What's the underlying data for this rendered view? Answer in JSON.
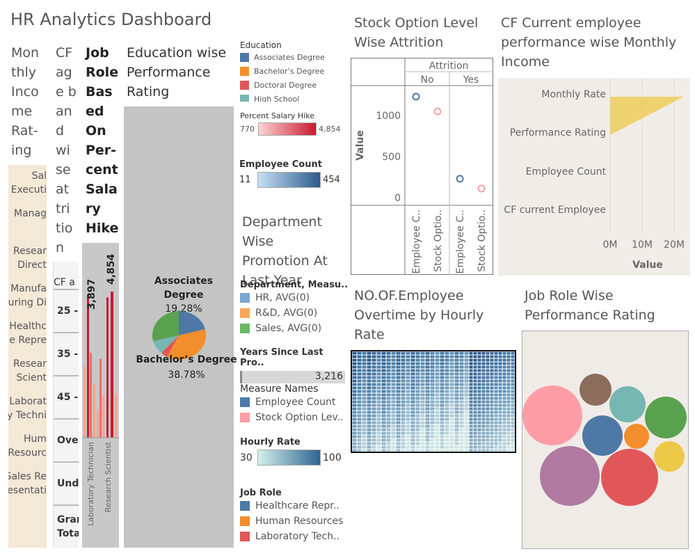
{
  "dashboard_title": "HR Analytics Dashboard",
  "monthly_income_rating": {
    "title": "Mon thly Inco me Rat- ing",
    "rows": [
      "Sal Executi",
      "Manag",
      "Resear Direct",
      "Manufa uring Di",
      "Healthc e Repre",
      "Resear Scient",
      "Laborat y Techni",
      "Hum Resourc",
      "Sales Re esentati"
    ]
  },
  "cf_age_band": {
    "title": "CF ag e b an d wi se at tri tio n",
    "header": "CF a",
    "rows": [
      "25 -",
      "35 -",
      "45 -",
      "Over",
      "Unde",
      "Gran Tota"
    ]
  },
  "job_role_salary_hike": {
    "title": "Job Role Bas ed On Per- cent Sala ry Hike",
    "x_labels": [
      "Laboratory Technician",
      "Research Scientist"
    ],
    "label_values": [
      "3,897",
      "4,854"
    ],
    "colors": {
      "dark": "#c8192f",
      "light": "#f4a58c",
      "mid": "#ee6e63",
      "bg": "#c8c8c8"
    }
  },
  "education_performance": {
    "title": "Education wise Performance Rating",
    "slices": [
      {
        "label": "Associates Degree",
        "pct": "19.28%",
        "color": "#4e79a7"
      },
      {
        "label": "Bachelor’s Degree",
        "pct": "38.78%",
        "color": "#f28e2b"
      }
    ]
  },
  "legends": {
    "education": {
      "title": "Education",
      "items": [
        {
          "label": "Associates Degree",
          "color": "#4e79a7"
        },
        {
          "label": "Bachelor’s Degree",
          "color": "#f28e2b"
        },
        {
          "label": "Doctoral Degree",
          "color": "#e15759"
        },
        {
          "label": "High School",
          "color": "#76b7b2"
        }
      ]
    },
    "percent_salary_hike": {
      "title": "Percent Salary Hike",
      "min": "770",
      "max": "4,854"
    },
    "employee_count": {
      "title": "Employee Count",
      "min": "11",
      "max": "454"
    },
    "department": {
      "title": "Department, Measu..",
      "items": [
        {
          "label": "HR, AVG(0)",
          "color": "#7aa6d1"
        },
        {
          "label": "R&D, AVG(0)",
          "color": "#f9a65a"
        },
        {
          "label": "Sales, AVG(0)",
          "color": "#6ab868"
        }
      ]
    },
    "years_since_last_promotion": {
      "title": "Years Since Last Pro..",
      "value": "3,216"
    },
    "measure_names": {
      "title": "Measure Names",
      "items": [
        {
          "label": "Employee Count",
          "color": "#4e79a7"
        },
        {
          "label": "Stock Option Lev..",
          "color": "#ff9da7"
        }
      ]
    },
    "hourly_rate": {
      "title": "Hourly Rate",
      "min": "30",
      "max": "100"
    },
    "job_role": {
      "title": "Job Role",
      "items": [
        {
          "label": "Healthcare Repr..",
          "color": "#4e79a7"
        },
        {
          "label": "Human Resources",
          "color": "#f28e2b"
        },
        {
          "label": "Laboratory Tech..",
          "color": "#e15759"
        }
      ]
    }
  },
  "department_promotion": {
    "title": "Department Wise Promotion At Last Year"
  },
  "overtime_hourly_rate": {
    "title": "NO.OF.Employee Overtime by Hourly Rate"
  },
  "job_role_performance": {
    "title": "Job Role Wise Performance Rating",
    "bubble_colors": [
      "#ff9da7",
      "#8c6d5c",
      "#76b7b2",
      "#59a14f",
      "#4e79a7",
      "#f28e2b",
      "#edc948",
      "#b07aa1",
      "#e15759"
    ]
  },
  "chart_data": [
    {
      "type": "scatter",
      "title": "Stock Option Level Wise Attrition",
      "header": "Attrition",
      "groups": [
        "No",
        "Yes"
      ],
      "ylabel": "Value",
      "ylim": [
        0,
        1300
      ],
      "yticks": [
        0,
        500,
        1000
      ],
      "series": [
        {
          "name": "Employee Count",
          "color": "#4e79a7",
          "values": [
            1230,
            230
          ]
        },
        {
          "name": "Stock Option Level",
          "color": "#ff9da7",
          "values": [
            1050,
            110
          ]
        }
      ],
      "x_labels": [
        "Employee C..",
        "Stock Optio..",
        "Employee C..",
        "Stock Optio.."
      ]
    },
    {
      "type": "area",
      "title": "CF Current employee performance wise Monthly Income",
      "categories": [
        "Monthly Rate",
        "Performance Rating",
        "Employee Count",
        "CF current Employee"
      ],
      "xlabel": "Value",
      "xticks": [
        "0M",
        "10M",
        "20M"
      ],
      "xlim": [
        0,
        23
      ],
      "area_color": "#edc948"
    }
  ]
}
